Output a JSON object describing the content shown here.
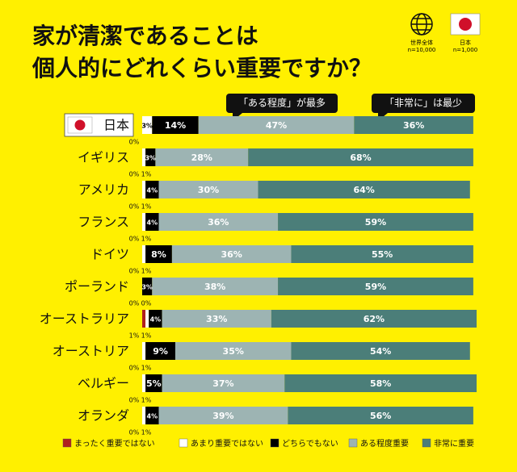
{
  "chart_data": {
    "type": "stacked-bar-horizontal",
    "title": [
      "家が清潔であることは",
      "個人的にどれくらい重要ですか？"
    ],
    "badges": [
      {
        "label": "世界全体",
        "note": "n=10,000"
      },
      {
        "label": "日本",
        "note": "n=1,000"
      }
    ],
    "annotations": [
      "「ある程度」が最多",
      "「非常に」は最少"
    ],
    "categories": [
      "日本",
      "イギリス",
      "アメリカ",
      "フランス",
      "ドイツ",
      "ポーランド",
      "オーストラリア",
      "オーストリア",
      "ベルギー",
      "オランダ"
    ],
    "xlim": [
      0,
      101
    ],
    "series": [
      {
        "name": "まったく重要ではない",
        "color": "#b0201e",
        "values": [
          0,
          0,
          0,
          0,
          0,
          0,
          1,
          0,
          0,
          0
        ],
        "value_labels": [
          "0%",
          "0%",
          "0%",
          "0%",
          "0%",
          "0%",
          "1%",
          "0%",
          "0%",
          "0%"
        ]
      },
      {
        "name": "あまり重要ではない",
        "color": "#ffffff",
        "values": [
          3,
          1,
          1,
          1,
          1,
          0,
          1,
          1,
          1,
          1
        ],
        "value_labels": [
          "3%",
          "1%",
          "1%",
          "1%",
          "1%",
          "0%",
          "1%",
          "1%",
          "1%",
          "1%"
        ]
      },
      {
        "name": "どちらでもない",
        "color": "#000000",
        "values": [
          14,
          3,
          4,
          4,
          8,
          3,
          4,
          9,
          5,
          4
        ],
        "value_labels": [
          "14%",
          "3%",
          "4%",
          "4%",
          "8%",
          "3%",
          "4%",
          "9%",
          "5%",
          "4%"
        ]
      },
      {
        "name": "ある程度重要",
        "color": "#9db4b3",
        "values": [
          47,
          28,
          30,
          36,
          36,
          38,
          33,
          35,
          37,
          39
        ],
        "value_labels": [
          "47%",
          "28%",
          "30%",
          "36%",
          "36%",
          "38%",
          "33%",
          "35%",
          "37%",
          "39%"
        ]
      },
      {
        "name": "非常に重要",
        "color": "#4b7e79",
        "values": [
          36,
          68,
          64,
          59,
          55,
          59,
          62,
          54,
          58,
          56
        ],
        "value_labels": [
          "36%",
          "68%",
          "64%",
          "59%",
          "55%",
          "59%",
          "62%",
          "54%",
          "58%",
          "56%"
        ]
      }
    ]
  }
}
